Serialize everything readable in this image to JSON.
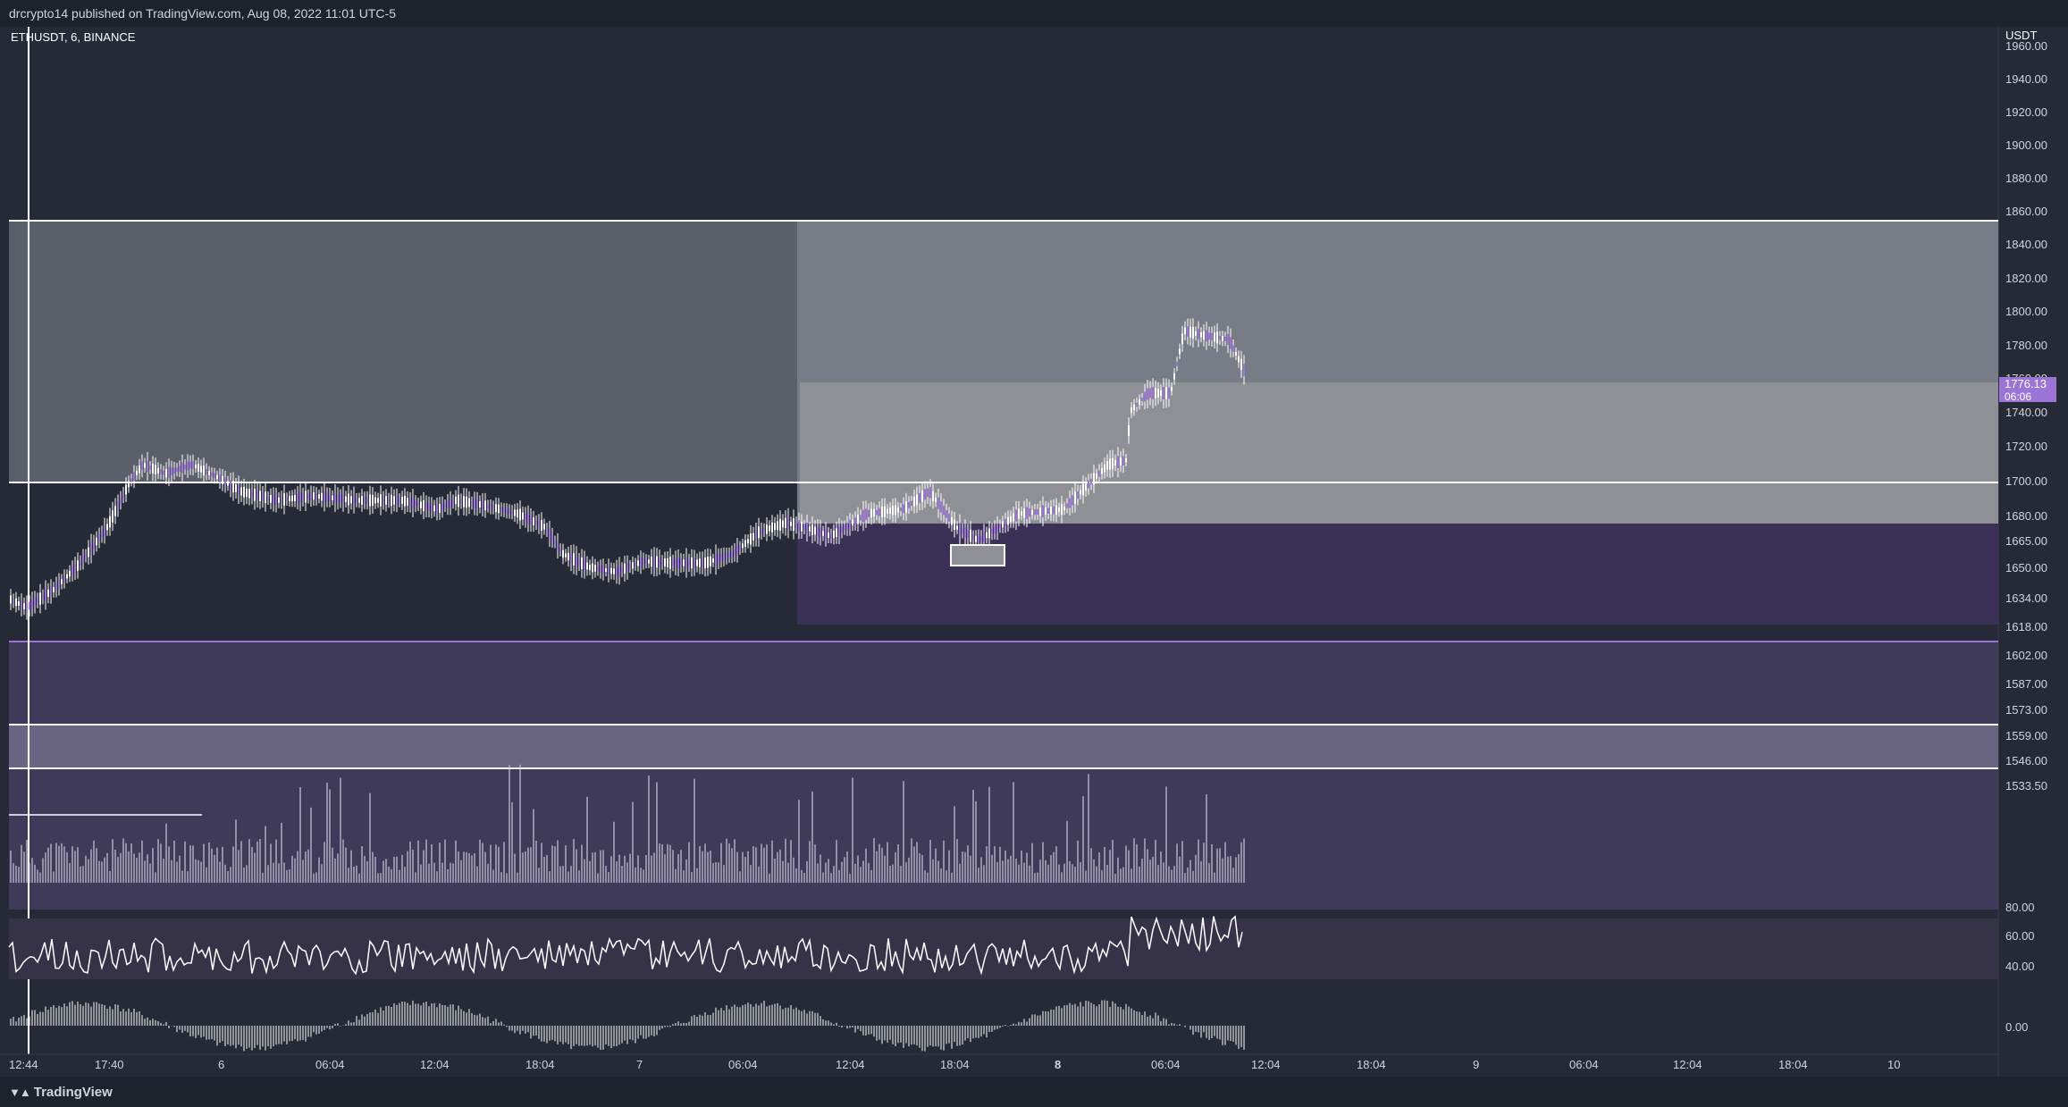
{
  "header": {
    "published_text": "drcrypto14 published on TradingView.com, Aug 08, 2022 11:01 UTC-5"
  },
  "chart": {
    "symbol_legend": "ETHUSDT, 6, BINANCE",
    "currency": "USDT",
    "price_ticks": [
      "1960.00",
      "1940.00",
      "1920.00",
      "1900.00",
      "1880.00",
      "1860.00",
      "1840.00",
      "1820.00",
      "1800.00",
      "1780.00",
      "1760.00",
      "1740.00",
      "1720.00",
      "1700.00",
      "1680.00",
      "1665.00",
      "1650.00",
      "1634.00",
      "1618.00",
      "1602.00",
      "1587.00",
      "1573.00",
      "1559.00",
      "1546.00",
      "1533.50"
    ],
    "indicator_ticks": [
      "80.00",
      "60.00",
      "40.00"
    ],
    "oscillator_ticks": [
      "0.00"
    ],
    "last_price": "1776.13",
    "countdown": "06:06",
    "time_labels": [
      "12:44",
      "17:40",
      "6",
      "06:04",
      "12:04",
      "18:04",
      "7",
      "06:04",
      "12:04",
      "18:04",
      "8",
      "06:04",
      "12:04",
      "18:04",
      "9",
      "06:04",
      "12:04",
      "18:04",
      "10"
    ],
    "bold_time_label": "8",
    "colors": {
      "background": "#131722",
      "pane": "#262a36",
      "zone_dark": "#5a5f6a",
      "zone_mid": "#787c86",
      "zone_light": "#8f9096",
      "purple_zone": "#3b3157",
      "purple_band": "#3f3a5a",
      "light_purple_band": "#6a6582",
      "accent": "#9b74d6"
    }
  },
  "footer": {
    "logo_label": "TradingView",
    "logo_icon": "tradingview-logo-icon"
  }
}
